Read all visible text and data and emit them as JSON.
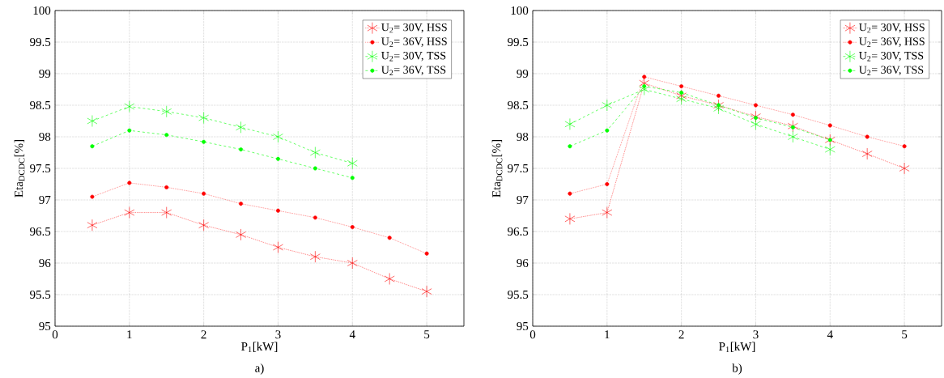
{
  "chart_data": [
    {
      "type": "line",
      "xlabel": "P$_{1}$[kW]",
      "ylabel": "Eta$_{DCDC}$[%]",
      "annotations": [
        "a)"
      ],
      "x": [
        0.5,
        1,
        1.5,
        2,
        2.5,
        3,
        3.5,
        4,
        4.5,
        5
      ],
      "series": [
        {
          "name": "U$_{2}$= 30V, HSS",
          "color": "#ff0000",
          "marker": "cross",
          "line_style": "dotted",
          "values": [
            96.6,
            96.8,
            96.8,
            96.6,
            96.45,
            96.25,
            96.1,
            96.0,
            95.75,
            95.55
          ]
        },
        {
          "name": "U$_{2}$= 36V, HSS",
          "color": "#ff0000",
          "marker": "circle",
          "line_style": "dotted",
          "values": [
            97.05,
            97.27,
            97.2,
            97.1,
            96.94,
            96.83,
            96.72,
            96.57,
            96.4,
            96.15
          ]
        },
        {
          "name": "U$_{2}$= 30V, TSS",
          "color": "#00ff00",
          "marker": "cross",
          "line_style": "dashed",
          "values": [
            98.25,
            98.48,
            98.4,
            98.3,
            98.15,
            98.0,
            97.75,
            97.58,
            null,
            null
          ]
        },
        {
          "name": "U$_{2}$= 36V, TSS",
          "color": "#00ff00",
          "marker": "circle",
          "line_style": "dashed",
          "values": [
            97.85,
            98.1,
            98.03,
            97.92,
            97.8,
            97.65,
            97.5,
            97.35,
            null,
            null
          ]
        }
      ],
      "xlim": [
        0,
        5.5
      ],
      "xticks": [
        0,
        1,
        2,
        3,
        4,
        5
      ],
      "ylim": [
        95,
        100
      ],
      "yticks": [
        95,
        95.5,
        96,
        96.5,
        97,
        97.5,
        98,
        98.5,
        99,
        99.5,
        100
      ],
      "grid": true,
      "legend": "top right"
    },
    {
      "type": "line",
      "xlabel": "P$_{1}$[kW]",
      "ylabel": "Eta$_{DCDC}$[%]",
      "annotations": [
        "b)"
      ],
      "x": [
        0.5,
        1,
        1.5,
        2,
        2.5,
        3,
        3.5,
        4,
        4.5,
        5
      ],
      "series": [
        {
          "name": "U$_{2}$= 30V, HSS",
          "color": "#ff0000",
          "marker": "cross",
          "line_style": "dotted",
          "values": [
            96.7,
            96.8,
            98.85,
            98.65,
            98.5,
            98.32,
            98.17,
            97.95,
            97.73,
            97.5
          ]
        },
        {
          "name": "U$_{2}$= 36V, HSS",
          "color": "#ff0000",
          "marker": "circle",
          "line_style": "dotted",
          "values": [
            97.1,
            97.25,
            98.95,
            98.8,
            98.65,
            98.5,
            98.35,
            98.18,
            98.0,
            97.85
          ]
        },
        {
          "name": "U$_{2}$= 30V, TSS",
          "color": "#00ff00",
          "marker": "cross",
          "line_style": "dashed",
          "values": [
            98.2,
            98.5,
            98.75,
            98.6,
            98.45,
            98.2,
            98.0,
            97.8,
            null,
            null
          ]
        },
        {
          "name": "U$_{2}$= 36V, TSS",
          "color": "#00ff00",
          "marker": "circle",
          "line_style": "dashed",
          "values": [
            97.85,
            98.1,
            98.8,
            98.7,
            98.5,
            98.3,
            98.15,
            97.95,
            null,
            null
          ]
        }
      ],
      "xlim": [
        0,
        5.5
      ],
      "xticks": [
        0,
        1,
        2,
        3,
        4,
        5
      ],
      "ylim": [
        95,
        100
      ],
      "yticks": [
        95,
        95.5,
        96,
        96.5,
        97,
        97.5,
        98,
        98.5,
        99,
        99.5,
        100
      ],
      "grid": true,
      "legend": "top right"
    }
  ]
}
